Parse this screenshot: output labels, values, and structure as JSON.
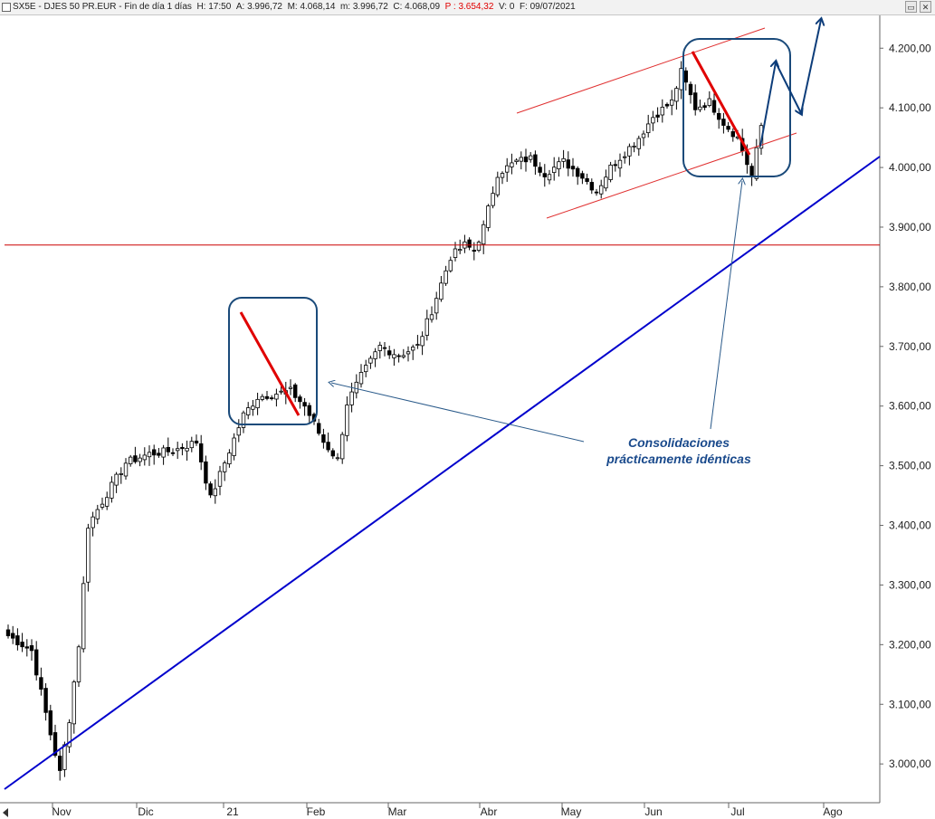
{
  "header": {
    "symbol": "SX5E",
    "name": "DJES 50 PR.EUR",
    "period": "Fin de día 1 días",
    "h_label": "H:",
    "h_value": "17:50",
    "a_label": "A:",
    "a_value": "3.996,72",
    "m_label": "M:",
    "m_value": "4.068,14",
    "min_label": "m:",
    "min_value": "3.996,72",
    "c_label": "C:",
    "c_value": "4.068,09",
    "p_label": "P :",
    "p_value": "3.654,32",
    "v_label": "V:",
    "v_value": "0",
    "f_label": "F:",
    "f_value": "09/07/2021"
  },
  "colors": {
    "candle": "#000000",
    "support": "#cc0000",
    "channel": "#e03030",
    "trend": "#0000cc",
    "box": "#1a4a7a",
    "arrow": "#0d3d7a",
    "drop": "#e00000",
    "pointer": "#2a5a8a"
  },
  "chart_data": {
    "type": "candlestick",
    "x_tick_labels": [
      "Nov",
      "Dic",
      "21",
      "Feb",
      "Mar",
      "Abr",
      "May",
      "Jun",
      "Jul",
      "Ago"
    ],
    "y_tick_labels": [
      "4.200,00",
      "4.100,00",
      "4.000,00",
      "3.900,00",
      "3.800,00",
      "3.700,00",
      "3.600,00",
      "3.500,00",
      "3.400,00",
      "3.300,00",
      "3.200,00",
      "3.100,00",
      "3.000,00"
    ],
    "y_ticks": [
      4200,
      4100,
      4000,
      3900,
      3800,
      3700,
      3600,
      3500,
      3400,
      3300,
      3200,
      3100,
      3000
    ],
    "ylim": [
      2935,
      4255
    ],
    "support_level": 3870,
    "annotation": {
      "line1": "Consolidaciones",
      "line2": "prácticamente idénticas"
    },
    "anchors_close": [
      [
        0,
        3215
      ],
      [
        5,
        3190
      ],
      [
        9,
        3050
      ],
      [
        11,
        2985
      ],
      [
        13,
        3075
      ],
      [
        15,
        3200
      ],
      [
        17,
        3400
      ],
      [
        20,
        3440
      ],
      [
        25,
        3505
      ],
      [
        30,
        3520
      ],
      [
        35,
        3525
      ],
      [
        40,
        3540
      ],
      [
        43,
        3445
      ],
      [
        46,
        3505
      ],
      [
        50,
        3585
      ],
      [
        53,
        3615
      ],
      [
        56,
        3620
      ],
      [
        60,
        3625
      ],
      [
        63,
        3600
      ],
      [
        67,
        3540
      ],
      [
        70,
        3510
      ],
      [
        72,
        3605
      ],
      [
        75,
        3650
      ],
      [
        79,
        3700
      ],
      [
        83,
        3685
      ],
      [
        87,
        3700
      ],
      [
        90,
        3760
      ],
      [
        94,
        3850
      ],
      [
        97,
        3870
      ],
      [
        99,
        3860
      ],
      [
        101,
        3900
      ],
      [
        104,
        3990
      ],
      [
        108,
        4010
      ],
      [
        111,
        4015
      ],
      [
        114,
        3990
      ],
      [
        118,
        4010
      ],
      [
        122,
        3985
      ],
      [
        125,
        3960
      ],
      [
        128,
        4000
      ],
      [
        131,
        4025
      ],
      [
        134,
        4050
      ],
      [
        137,
        4085
      ],
      [
        141,
        4110
      ],
      [
        143,
        4160
      ],
      [
        146,
        4100
      ],
      [
        149,
        4110
      ],
      [
        152,
        4075
      ],
      [
        155,
        4050
      ],
      [
        158,
        3985
      ],
      [
        160,
        4070
      ]
    ],
    "n_days": 161
  }
}
